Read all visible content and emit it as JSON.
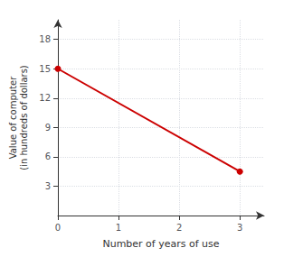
{
  "chart_data": {
    "type": "line",
    "x": [
      0,
      3
    ],
    "values": [
      15,
      4.5
    ],
    "color": "#cc0000",
    "marker": "circle",
    "xlabel": "Number of years of use",
    "ylabel": "Value of computer\n(in hundreds of dollars)",
    "xlim": [
      0,
      3.4
    ],
    "ylim": [
      0,
      20
    ],
    "xticks": [
      0,
      1,
      2,
      3
    ],
    "yticks": [
      3,
      6,
      9,
      12,
      15,
      18
    ],
    "grid": true
  }
}
